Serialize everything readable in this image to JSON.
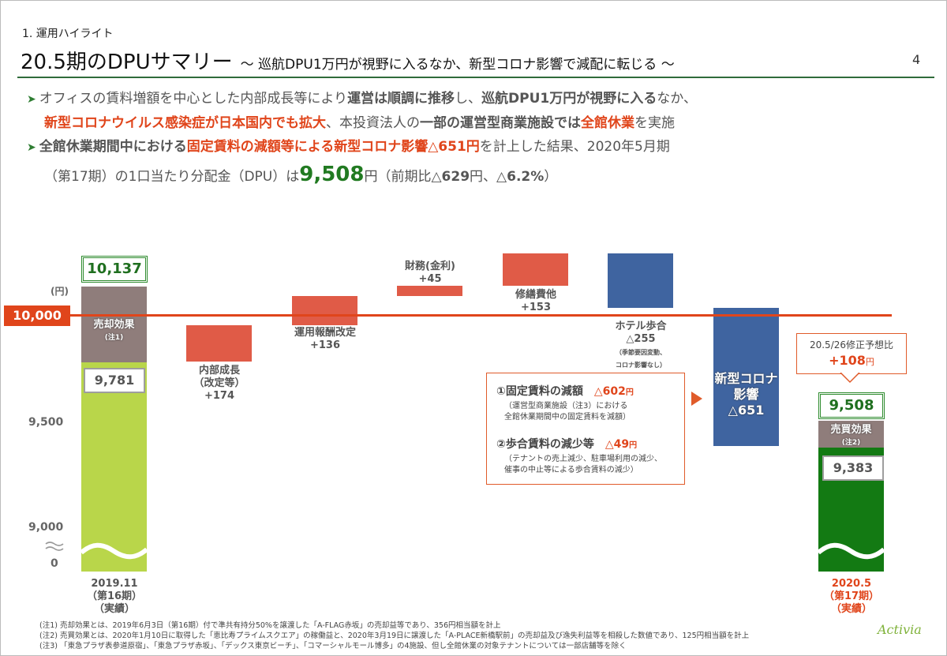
{
  "header": {
    "section": "1. 運用ハイライト",
    "title": "20.5期のDPUサマリー",
    "subtitle": "～ 巡航DPU1万円が視野に入るなか、新型コロナ影響で減配に転じる ～",
    "page": "4"
  },
  "bullets": {
    "b1": {
      "t1": "オフィスの賃料増額を中心とした内部成長等により",
      "t2": "運営は順調に推移",
      "t3": "し、",
      "t4": "巡航DPU1万円が視野に入る",
      "t5": "なか、",
      "t6": "新型コロナウイルス感染症が日本国内でも拡大",
      "t7": "、本投資法人の",
      "t8": "一部の運営型商業施設では",
      "t9": "全館休業",
      "t10": "を実施"
    },
    "b2": {
      "t1": "全館休業期間中における",
      "t2": "固定賃料の減額等による新型コロナ影響△651円",
      "t3": "を計上した結果、2020年5月期",
      "t4": "（第17期）の1口当たり分配金（DPU）は",
      "t5": "9,508",
      "t6": "円（前期比",
      "t7": "△629",
      "t8": "円、",
      "t9": "△6.2%",
      "t10": "）"
    }
  },
  "chart_data": {
    "type": "bar",
    "unit": "(円)",
    "ticks": [
      "9,500",
      "9,000",
      "0"
    ],
    "reference_value": 10000,
    "reference_label": "10,000",
    "start": {
      "total": "10,137",
      "base": "9,781",
      "effect_label": "売却効果",
      "effect_note": "(注1)",
      "xlabel": [
        "2019.11",
        "（第16期）",
        "（実績）"
      ]
    },
    "steps": [
      {
        "label": [
          "内部成長",
          "（改定等）"
        ],
        "value": 174,
        "value_label": "+174"
      },
      {
        "label": [
          "運用報酬改定"
        ],
        "value": 136,
        "value_label": "+136"
      },
      {
        "label": [
          "財務(金利)"
        ],
        "value": 45,
        "value_label": "+45"
      },
      {
        "label": [
          "修繕費他"
        ],
        "value": 153,
        "value_label": "+153"
      },
      {
        "label": [
          "ホテル歩合"
        ],
        "value": -255,
        "value_label": "△255",
        "note": [
          "（季節要因変動、",
          "コロナ影響なし）"
        ]
      },
      {
        "label": [
          "新型コロナ",
          "影響"
        ],
        "value": -651,
        "value_label": "△651"
      }
    ],
    "end": {
      "total": "9,508",
      "base": "9,383",
      "effect_label": "売買効果",
      "effect_note": "(注2)",
      "xlabel": [
        "2020.5",
        "（第17期）",
        "（実績）"
      ]
    },
    "forecast": {
      "label": "20.5/26修正予想比",
      "value": "+108",
      "unit": "円"
    }
  },
  "breakdown": {
    "item1": {
      "label": "①固定賃料の減額",
      "value": "△602",
      "unit": "円",
      "note": [
        "（運営型商業施設（注3）における",
        "全館休業期間中の固定賃料を減額）"
      ]
    },
    "item2": {
      "label": "②歩合賃料の減少等",
      "value": "△49",
      "unit": "円",
      "note": [
        "（テナントの売上減少、駐車場利用の減少、",
        "催事の中止等による歩合賃料の減少）"
      ]
    }
  },
  "notes": [
    "(注1) 売却効果とは、2019年6月3日（第16期）付で準共有持分50%を譲渡した「A-FLAG赤坂」の売却益等であり、356円相当額を計上",
    "(注2) 売買効果とは、2020年1月10日に取得した「恵比寿プライムスクエア」の稼働益と、2020年3月19日に譲渡した「A-PLACE新橋駅前」の売却益及び逸失利益等を相殺した数値であり、125円相当額を計上",
    "(注3) 「東急プラザ表参道原宿」、「東急プラザ赤坂」、「デックス東京ビーチ」、「コマーシャルモール博多」の4施設、但し全館休業の対象テナントについては一部店舗等を除く"
  ],
  "logo": "Activia"
}
